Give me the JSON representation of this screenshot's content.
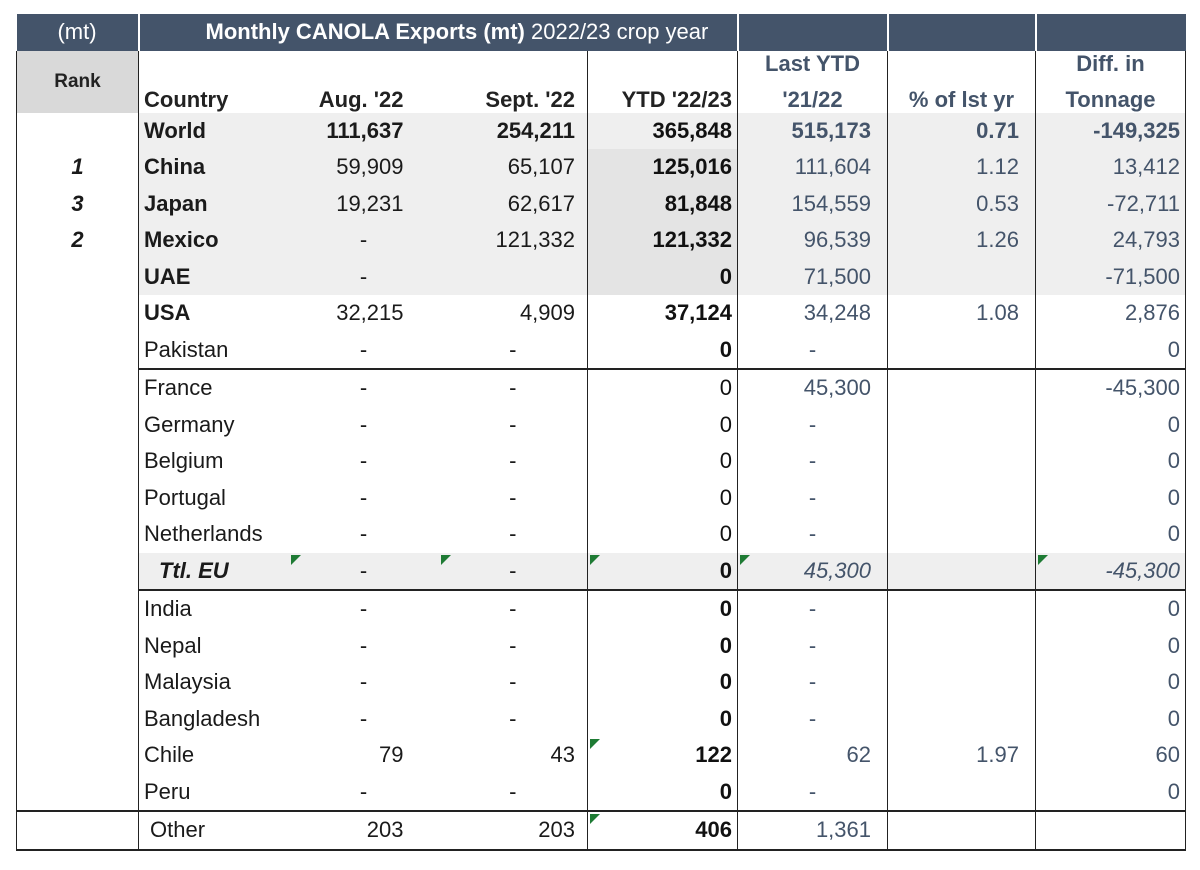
{
  "title": {
    "unit": "(mt)",
    "main_bold": "Monthly CANOLA Exports  (mt)",
    "main_rest": " 2022/23 crop year"
  },
  "header": {
    "rank": "Rank",
    "country": "Country",
    "aug": "Aug. '22",
    "sep": "Sept. '22",
    "ytd": "YTD '22/23",
    "last_line1": "Last YTD",
    "last_line2": "'21/22",
    "pct": "% of lst yr",
    "diff_line1": "Diff. in",
    "diff_line2": "Tonnage"
  },
  "rows": [
    {
      "rank": "",
      "country": "World",
      "aug": "111,637",
      "sep": "254,211",
      "ytd": "365,848",
      "last": "515,173",
      "pct": "0.71",
      "diff": "-149,325"
    },
    {
      "rank": "1",
      "country": "China",
      "aug": "59,909",
      "sep": "65,107",
      "ytd": "125,016",
      "last": "111,604",
      "pct": "1.12",
      "diff": "13,412"
    },
    {
      "rank": "3",
      "country": "Japan",
      "aug": "19,231",
      "sep": "62,617",
      "ytd": "81,848",
      "last": "154,559",
      "pct": "0.53",
      "diff": "-72,711"
    },
    {
      "rank": "2",
      "country": "Mexico",
      "aug": "-",
      "sep": "121,332",
      "ytd": "121,332",
      "last": "96,539",
      "pct": "1.26",
      "diff": "24,793"
    },
    {
      "rank": "",
      "country": "UAE",
      "aug": "-",
      "sep": "",
      "ytd": "0",
      "last": "71,500",
      "pct": "",
      "diff": "-71,500"
    },
    {
      "rank": "",
      "country": "USA",
      "aug": "32,215",
      "sep": "4,909",
      "ytd": "37,124",
      "last": "34,248",
      "pct": "1.08",
      "diff": "2,876"
    },
    {
      "rank": "",
      "country": "Pakistan",
      "aug": "-",
      "sep": "-",
      "ytd": "0",
      "last": "-",
      "pct": "",
      "diff": "0"
    },
    {
      "rank": "",
      "country": "France",
      "aug": "-",
      "sep": "-",
      "ytd": "0",
      "last": "45,300",
      "pct": "",
      "diff": "-45,300"
    },
    {
      "rank": "",
      "country": "Germany",
      "aug": "-",
      "sep": "-",
      "ytd": "0",
      "last": "-",
      "pct": "",
      "diff": "0"
    },
    {
      "rank": "",
      "country": "Belgium",
      "aug": "-",
      "sep": "-",
      "ytd": "0",
      "last": "-",
      "pct": "",
      "diff": "0"
    },
    {
      "rank": "",
      "country": "Portugal",
      "aug": "-",
      "sep": "-",
      "ytd": "0",
      "last": "-",
      "pct": "",
      "diff": "0"
    },
    {
      "rank": "",
      "country": "Netherlands",
      "aug": "-",
      "sep": "-",
      "ytd": "0",
      "last": "-",
      "pct": "",
      "diff": "0"
    },
    {
      "rank": "",
      "country": "Ttl. EU",
      "aug": "-",
      "sep": "-",
      "ytd": "0",
      "last": "45,300",
      "pct": "",
      "diff": "-45,300"
    },
    {
      "rank": "",
      "country": "India",
      "aug": "-",
      "sep": "-",
      "ytd": "0",
      "last": "-",
      "pct": "",
      "diff": "0"
    },
    {
      "rank": "",
      "country": "Nepal",
      "aug": "-",
      "sep": "-",
      "ytd": "0",
      "last": "-",
      "pct": "",
      "diff": "0"
    },
    {
      "rank": "",
      "country": "Malaysia",
      "aug": "-",
      "sep": "-",
      "ytd": "0",
      "last": "-",
      "pct": "",
      "diff": "0"
    },
    {
      "rank": "",
      "country": "Bangladesh",
      "aug": "-",
      "sep": "-",
      "ytd": "0",
      "last": "-",
      "pct": "",
      "diff": "0"
    },
    {
      "rank": "",
      "country": "Chile",
      "aug": "79",
      "sep": "43",
      "ytd": "122",
      "last": "62",
      "pct": "1.97",
      "diff": "60"
    },
    {
      "rank": "",
      "country": "Peru",
      "aug": "-",
      "sep": "-",
      "ytd": "0",
      "last": "-",
      "pct": "",
      "diff": "0"
    },
    {
      "rank": "",
      "country": "Other",
      "aug": "203",
      "sep": "203",
      "ytd": "406",
      "last": "1,361",
      "pct": "",
      "diff": ""
    }
  ]
}
